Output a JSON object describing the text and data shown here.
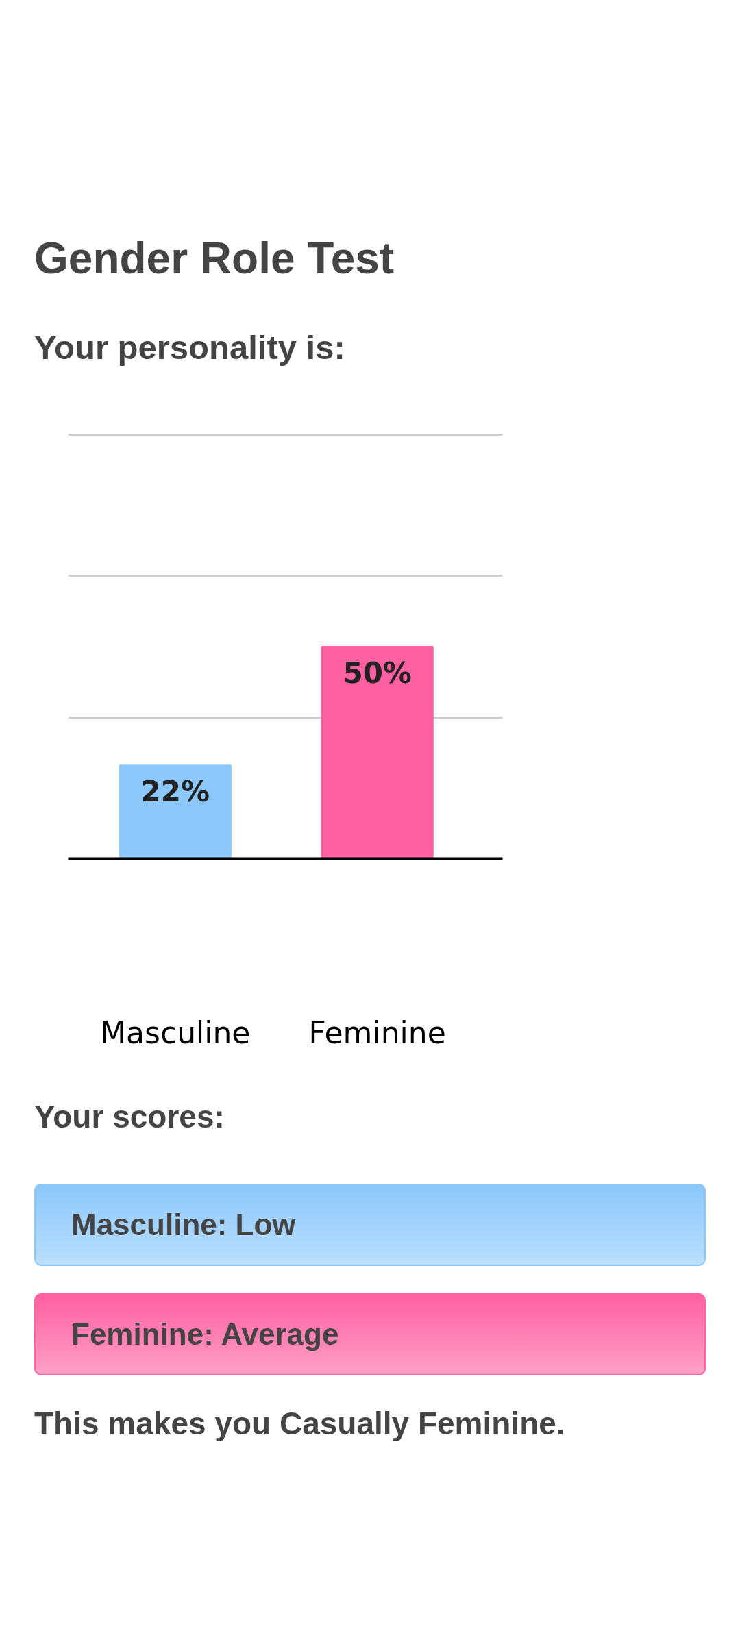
{
  "chart_data": {
    "type": "bar",
    "title": "Gender Role Test",
    "subtitle": "Your personality is:",
    "categories": [
      "Masculine",
      "Feminine"
    ],
    "values": [
      22,
      50
    ],
    "colors": [
      "#8cc8fb",
      "#ff60a1"
    ],
    "value_labels": [
      "22%",
      "50%"
    ],
    "ylim": [
      0,
      100
    ],
    "yticks": [
      {
        "value": 0,
        "label": null
      },
      {
        "value": 33.3,
        "label": null
      },
      {
        "value": 66.7,
        "label": null
      },
      {
        "value": 100,
        "label": null
      }
    ],
    "grid": "y",
    "tick_labels": "x",
    "annotations": [
      "Your scores:",
      "Masculine: Low",
      "Feminine: Average",
      "This makes you Casually Feminine."
    ]
  }
}
